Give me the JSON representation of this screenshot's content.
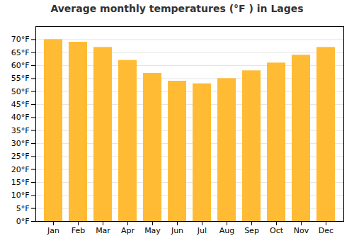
{
  "chart_data": {
    "type": "bar",
    "title": "Average monthly temperatures (°F ) in Lages",
    "categories": [
      "Jan",
      "Feb",
      "Mar",
      "Apr",
      "May",
      "Jun",
      "Jul",
      "Aug",
      "Sep",
      "Oct",
      "Nov",
      "Dec"
    ],
    "values": [
      70,
      69,
      67,
      62,
      57,
      54,
      53,
      55,
      58,
      61,
      64,
      67
    ],
    "color": "#FFBB33",
    "ylim": [
      0,
      75
    ],
    "yticks": [
      {
        "value": 0,
        "label": "0°F"
      },
      {
        "value": 5,
        "label": "5°F"
      },
      {
        "value": 10,
        "label": "10°F"
      },
      {
        "value": 15,
        "label": "15°F"
      },
      {
        "value": 20,
        "label": "20°F"
      },
      {
        "value": 25,
        "label": "25°F"
      },
      {
        "value": 30,
        "label": "30°F"
      },
      {
        "value": 35,
        "label": "35°F"
      },
      {
        "value": 40,
        "label": "40°F"
      },
      {
        "value": 45,
        "label": "45°F"
      },
      {
        "value": 50,
        "label": "50°F"
      },
      {
        "value": 55,
        "label": "55°F"
      },
      {
        "value": 60,
        "label": "60°F"
      },
      {
        "value": 65,
        "label": "65°F"
      },
      {
        "value": 70,
        "label": "70°F"
      }
    ],
    "grid": true
  }
}
